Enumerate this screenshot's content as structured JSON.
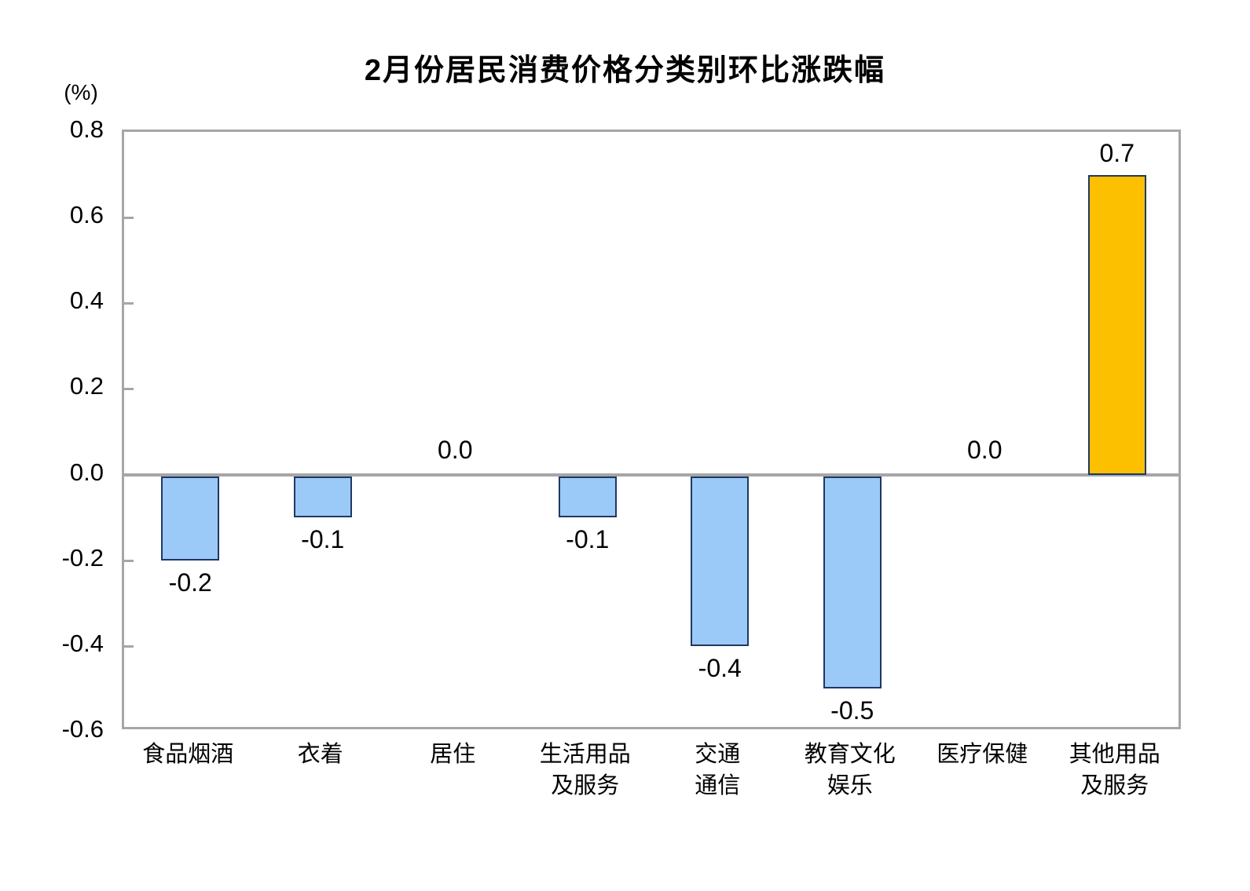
{
  "title": "2月份居民消费价格分类别环比涨跌幅",
  "chart_data": {
    "type": "bar",
    "title": "2月份居民消费价格分类别环比涨跌幅",
    "xlabel": "",
    "ylabel": "(%)",
    "categories": [
      "食品烟酒",
      "衣着",
      "居住",
      "生活用品\n及服务",
      "交通\n通信",
      "教育文化\n娱乐",
      "医疗保健",
      "其他用品\n及服务"
    ],
    "values": [
      -0.2,
      -0.1,
      0.0,
      -0.1,
      -0.4,
      -0.5,
      0.0,
      0.7
    ],
    "value_labels": [
      "-0.2",
      "-0.1",
      "0.0",
      "-0.1",
      "-0.4",
      "-0.5",
      "0.0",
      "0.7"
    ],
    "ylim": [
      -0.6,
      0.8
    ],
    "ytick_step": 0.2,
    "ytick_labels": [
      "0.8",
      "0.6",
      "0.4",
      "0.2",
      "0.0",
      "-0.2",
      "-0.4",
      "-0.6"
    ],
    "grid": false,
    "legend_position": "none",
    "colors": {
      "negative_bar": "#9ccaf8",
      "positive_bar": "#fcc000",
      "bar_border": "#1f3864",
      "frame": "#a6a6a6",
      "zero_line": "#a6a6a6",
      "text": "#000000",
      "background": "#ffffff"
    },
    "bar_colors": [
      "#9ccaf8",
      "#9ccaf8",
      "#9ccaf8",
      "#9ccaf8",
      "#9ccaf8",
      "#9ccaf8",
      "#9ccaf8",
      "#fcc000"
    ]
  }
}
